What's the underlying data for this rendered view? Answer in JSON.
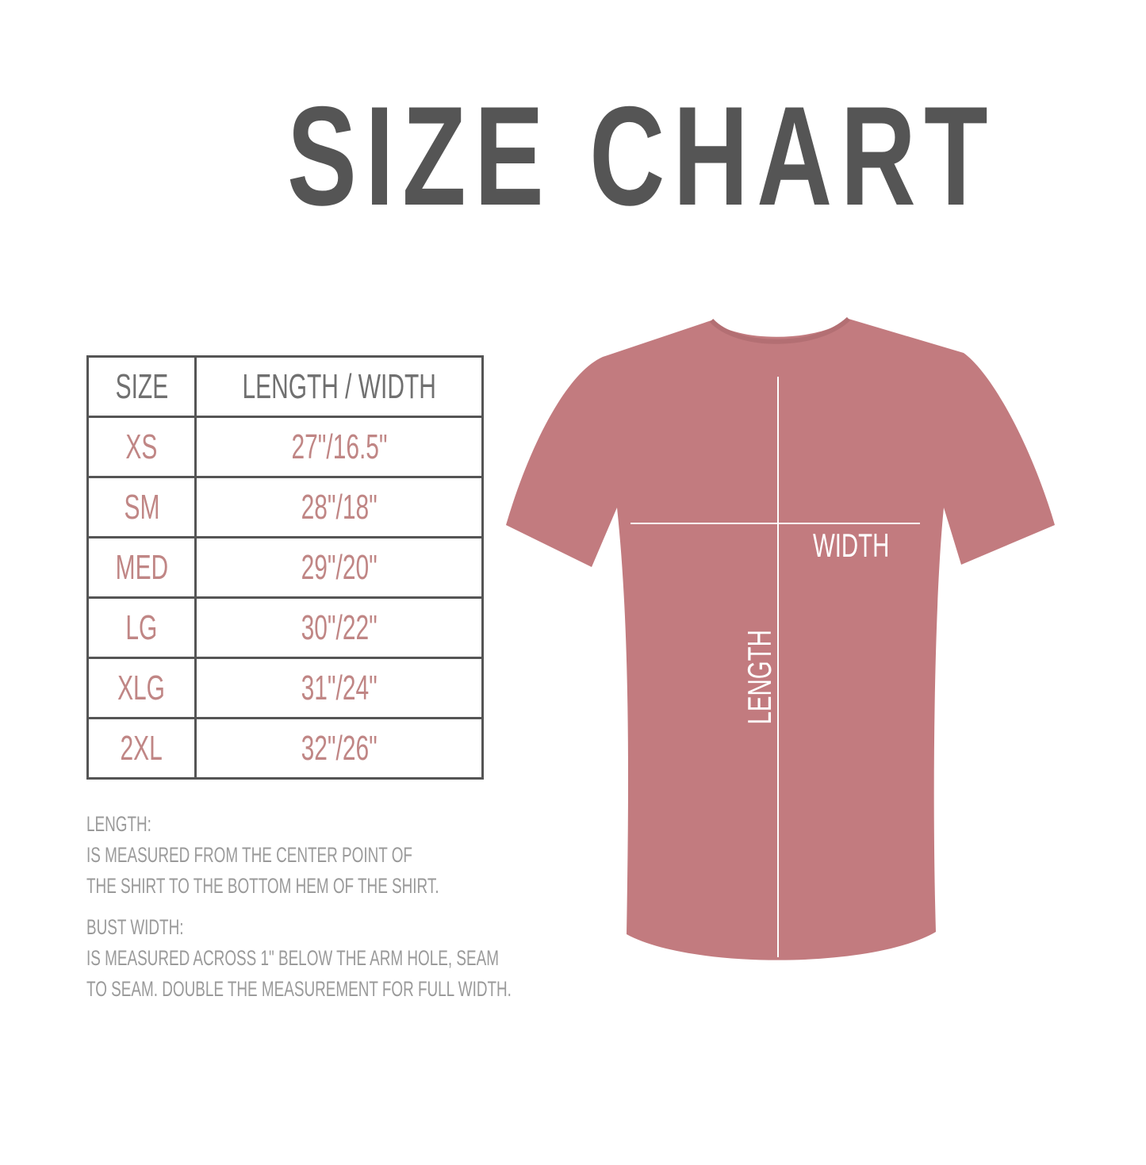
{
  "title": "SIZE CHART",
  "colors": {
    "title": "#555555",
    "values": "#c08685",
    "shirt": "#c27b7f",
    "notes": "#9a9a9a"
  },
  "table": {
    "headers": [
      "SIZE",
      "LENGTH / WIDTH"
    ],
    "rows": [
      {
        "size": "XS",
        "measure": "27\"/16.5\""
      },
      {
        "size": "SM",
        "measure": "28\"/18\""
      },
      {
        "size": "MED",
        "measure": "29\"/20\""
      },
      {
        "size": "LG",
        "measure": "30\"/22\""
      },
      {
        "size": "XLG",
        "measure": "31\"/24\""
      },
      {
        "size": "2XL",
        "measure": "32\"/26\""
      }
    ]
  },
  "notes": {
    "length_heading": "LENGTH:",
    "length_line1": "IS MEASURED FROM THE CENTER POINT OF",
    "length_line2": "THE SHIRT TO THE BOTTOM HEM OF THE SHIRT.",
    "width_heading": "BUST WIDTH:",
    "width_line1": "IS MEASURED ACROSS  1\" BELOW THE ARM HOLE, SEAM",
    "width_line2": "TO SEAM. DOUBLE THE MEASUREMENT FOR FULL WIDTH."
  },
  "diagram": {
    "width_label": "WIDTH",
    "length_label": "LENGTH"
  }
}
